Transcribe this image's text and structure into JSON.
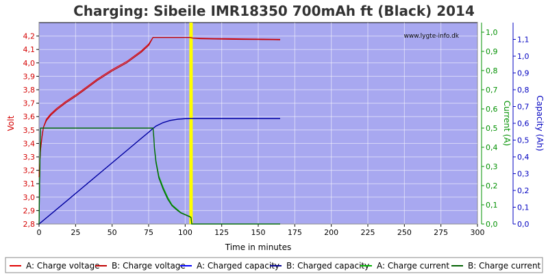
{
  "chart_data": {
    "type": "line",
    "title": "Charging: Sibeile IMR18350 700mAh ft (Black) 2014",
    "watermark": "www.lygte-info.dk",
    "xlabel": "Time in minutes",
    "xlim": [
      0,
      300
    ],
    "xticks": [
      "0",
      "25",
      "50",
      "75",
      "100",
      "125",
      "150",
      "175",
      "200",
      "225",
      "250",
      "275",
      "300"
    ],
    "y_left": {
      "label": "Volt",
      "color": "#d40000",
      "ylim": [
        2.8,
        4.3
      ],
      "ticks": [
        "2,8",
        "2,9",
        "3,0",
        "3,1",
        "3,2",
        "3,3",
        "3,4",
        "3,5",
        "3,6",
        "3,7",
        "3,8",
        "3,9",
        "4,0",
        "4,1",
        "4,2"
      ]
    },
    "y_right1": {
      "label": "Current (A)",
      "color": "#009000",
      "ylim": [
        0,
        1.05
      ],
      "ticks": [
        "0,0",
        "0,1",
        "0,2",
        "0,3",
        "0,4",
        "0,5",
        "0,6",
        "0,7",
        "0,8",
        "0,9",
        "1,0"
      ]
    },
    "y_right2": {
      "label": "Capacity (Ah)",
      "color": "#0000c0",
      "ylim": [
        0,
        1.2
      ],
      "ticks": [
        "0,0",
        "0,1",
        "0,2",
        "0,3",
        "0,4",
        "0,5",
        "0,6",
        "0,7",
        "0,8",
        "0,9",
        "1,0",
        "1,1"
      ]
    },
    "marker": {
      "x": 104,
      "color": "#ffff00"
    },
    "grid": true,
    "plot_background": "#a8a8f0",
    "series": [
      {
        "name": "A: Charge voltage",
        "axis": "left",
        "color": "#e00000",
        "x": [
          0,
          1,
          2,
          3,
          5,
          8,
          12,
          18,
          25,
          30,
          40,
          50,
          60,
          70,
          75,
          78,
          85,
          95,
          103,
          105,
          110,
          120,
          130,
          140,
          150,
          160,
          165
        ],
        "y": [
          3.15,
          3.35,
          3.45,
          3.52,
          3.58,
          3.62,
          3.66,
          3.71,
          3.76,
          3.8,
          3.88,
          3.95,
          4.01,
          4.09,
          4.14,
          4.19,
          4.19,
          4.19,
          4.19,
          4.185,
          4.183,
          4.181,
          4.18,
          4.178,
          4.177,
          4.176,
          4.175
        ]
      },
      {
        "name": "B: Charge voltage",
        "axis": "left",
        "color": "#c00000",
        "x": [
          0,
          1,
          2,
          3,
          5,
          8,
          12,
          18,
          25,
          30,
          40,
          50,
          60,
          70,
          75,
          78,
          85,
          95,
          103,
          105,
          110,
          120,
          130,
          140,
          150,
          160,
          165
        ],
        "y": [
          3.15,
          3.35,
          3.45,
          3.52,
          3.57,
          3.61,
          3.65,
          3.7,
          3.75,
          3.79,
          3.87,
          3.94,
          4.0,
          4.08,
          4.13,
          4.19,
          4.19,
          4.19,
          4.19,
          4.185,
          4.18,
          4.178,
          4.176,
          4.175,
          4.174,
          4.173,
          4.172
        ]
      },
      {
        "name": "A: Charged capacity",
        "axis": "right2",
        "color": "#0000ff",
        "x": [
          0,
          10,
          20,
          30,
          40,
          50,
          60,
          70,
          75,
          78,
          80,
          85,
          90,
          95,
          100,
          104,
          110,
          120,
          130,
          140,
          150,
          160,
          165
        ],
        "y": [
          0,
          0.073,
          0.146,
          0.219,
          0.292,
          0.365,
          0.438,
          0.511,
          0.547,
          0.57,
          0.584,
          0.605,
          0.618,
          0.625,
          0.628,
          0.629,
          0.629,
          0.629,
          0.629,
          0.629,
          0.629,
          0.629,
          0.629
        ]
      },
      {
        "name": "B: Charged capacity",
        "axis": "right2",
        "color": "#000090",
        "x": [
          0,
          10,
          20,
          30,
          40,
          50,
          60,
          70,
          75,
          78,
          80,
          85,
          90,
          95,
          100,
          104,
          110,
          120,
          130,
          140,
          150,
          160,
          165
        ],
        "y": [
          0,
          0.072,
          0.145,
          0.218,
          0.291,
          0.364,
          0.437,
          0.51,
          0.546,
          0.569,
          0.583,
          0.604,
          0.617,
          0.624,
          0.627,
          0.628,
          0.628,
          0.628,
          0.628,
          0.628,
          0.628,
          0.628,
          0.628
        ]
      },
      {
        "name": "A: Charge current",
        "axis": "right1",
        "color": "#00b000",
        "x": [
          0,
          1,
          2,
          77,
          78,
          78.5,
          79,
          80,
          82,
          85,
          88,
          91,
          94,
          97,
          100,
          103,
          104,
          104.5,
          105,
          110,
          120,
          140,
          165
        ],
        "y": [
          0,
          0.5,
          0.5,
          0.5,
          0.5,
          0.46,
          0.4,
          0.33,
          0.25,
          0.19,
          0.14,
          0.1,
          0.08,
          0.06,
          0.05,
          0.04,
          0.035,
          0.0,
          0.0,
          0.0,
          0.0,
          0.0,
          0.0
        ]
      },
      {
        "name": "B: Charge current",
        "axis": "right1",
        "color": "#006000",
        "x": [
          0,
          1,
          2,
          77,
          78,
          78.5,
          79,
          80,
          82,
          85,
          88,
          91,
          94,
          97,
          100,
          103,
          104,
          104.5,
          105,
          110,
          120,
          140,
          165
        ],
        "y": [
          0,
          0.5,
          0.5,
          0.5,
          0.5,
          0.45,
          0.39,
          0.32,
          0.24,
          0.18,
          0.13,
          0.095,
          0.075,
          0.058,
          0.048,
          0.038,
          0.033,
          0.0,
          0.0,
          0.0,
          0.0,
          0.0,
          0.0
        ]
      }
    ]
  }
}
